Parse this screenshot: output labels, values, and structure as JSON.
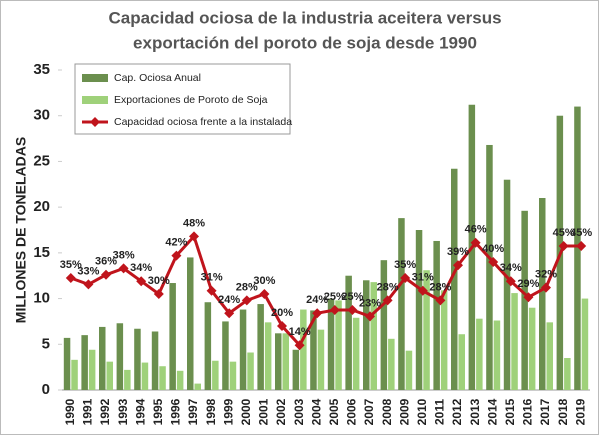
{
  "chart_data": {
    "type": "bar",
    "title": [
      "Capacidad ociosa de la industria aceitera versus",
      "exportación del poroto de soja desde 1990"
    ],
    "ylabel": "MILLONES DE TONELADAS",
    "categories": [
      "1990",
      "1991",
      "1992",
      "1993",
      "1994",
      "1995",
      "1996",
      "1997",
      "1998",
      "1999",
      "2000",
      "2001",
      "2002",
      "2003",
      "2004",
      "2005",
      "2006",
      "2007",
      "2008",
      "2009",
      "2010",
      "2011",
      "2012",
      "2013",
      "2014",
      "2015",
      "2016",
      "2017",
      "2018",
      "2019"
    ],
    "ylim": [
      0,
      35
    ],
    "yticks": [
      0,
      5,
      10,
      15,
      20,
      25,
      30,
      35
    ],
    "y2lim": [
      0,
      100
    ],
    "grid": false,
    "legend": "upper left",
    "series": [
      {
        "name": "Cap. Ociosa Anual",
        "type": "bar",
        "color": "#6b8f4e",
        "values": [
          5.7,
          6.0,
          6.9,
          7.3,
          6.7,
          6.4,
          11.7,
          14.5,
          9.6,
          7.5,
          8.8,
          9.4,
          6.2,
          4.4,
          8.7,
          10.0,
          12.5,
          12.0,
          14.2,
          18.8,
          17.5,
          16.3,
          24.2,
          31.2,
          26.8,
          23.0,
          19.6,
          21.0,
          30.0,
          31.0
        ]
      },
      {
        "name": "Exportaciones de Poroto de Soja",
        "type": "bar",
        "color": "#9fd17a",
        "values": [
          3.3,
          4.4,
          3.1,
          2.2,
          3.0,
          2.6,
          2.1,
          0.7,
          3.2,
          3.1,
          4.1,
          7.4,
          6.2,
          8.8,
          6.6,
          9.8,
          7.9,
          11.8,
          5.6,
          4.3,
          13.1,
          10.9,
          6.1,
          7.8,
          7.6,
          10.6,
          9.0,
          7.4,
          3.5,
          10.0
        ]
      },
      {
        "name": "Capacidad ociosa frente a la instalada",
        "type": "line",
        "axis": "y2",
        "color": "#c0141c",
        "values": [
          35,
          33,
          36,
          38,
          34,
          30,
          42,
          48,
          31,
          24,
          28,
          30,
          20,
          14,
          24,
          25,
          25,
          23,
          28,
          35,
          31,
          28,
          39,
          46,
          40,
          34,
          29,
          32,
          45,
          45
        ],
        "value_labels": [
          "35%",
          "33%",
          "36%",
          "38%",
          "34%",
          "30%",
          "42%",
          "48%",
          "31%",
          "24%",
          "28%",
          "30%",
          "20%",
          "14%",
          "24%",
          "25%",
          "25%",
          "23%",
          "28%",
          "35%",
          "31%",
          "28%",
          "39%",
          "46%",
          "40%",
          "34%",
          "29%",
          "32%",
          "45%",
          "45%"
        ]
      }
    ]
  }
}
